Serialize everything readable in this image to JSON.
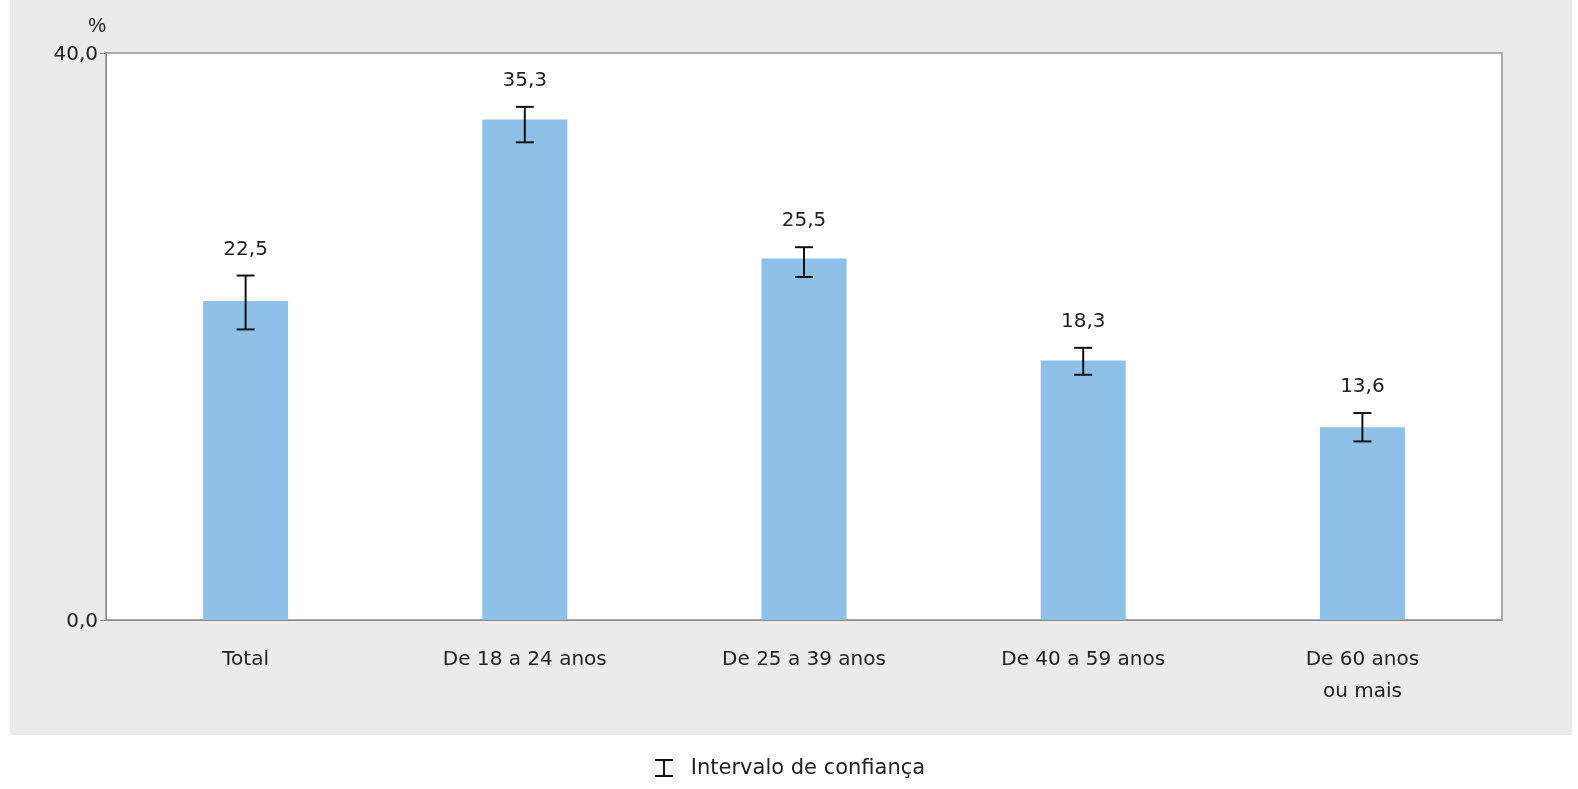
{
  "chart_data": {
    "type": "bar",
    "ylabel": "%",
    "categories": [
      "Total",
      "De 18 a 24 anos",
      "De 25 a 39 anos",
      "De 40 a 59 anos",
      "De 60 anos\nou mais"
    ],
    "values": [
      22.5,
      35.3,
      25.5,
      18.3,
      13.6
    ],
    "value_labels": [
      "22,5",
      "35,3",
      "25,5",
      "18,3",
      "13,6"
    ],
    "errors": [
      [
        20.5,
        24.3
      ],
      [
        33.7,
        36.2
      ],
      [
        24.2,
        26.3
      ],
      [
        17.3,
        19.2
      ],
      [
        12.6,
        14.6
      ]
    ],
    "color": "#8fc0e8",
    "ylim": [
      0,
      40
    ],
    "yticks": [
      {
        "value": 0,
        "label": "0,0"
      },
      {
        "value": 40,
        "label": "40,0"
      }
    ],
    "grid": false,
    "annotations": [
      "Intervalo de confiança"
    ]
  }
}
